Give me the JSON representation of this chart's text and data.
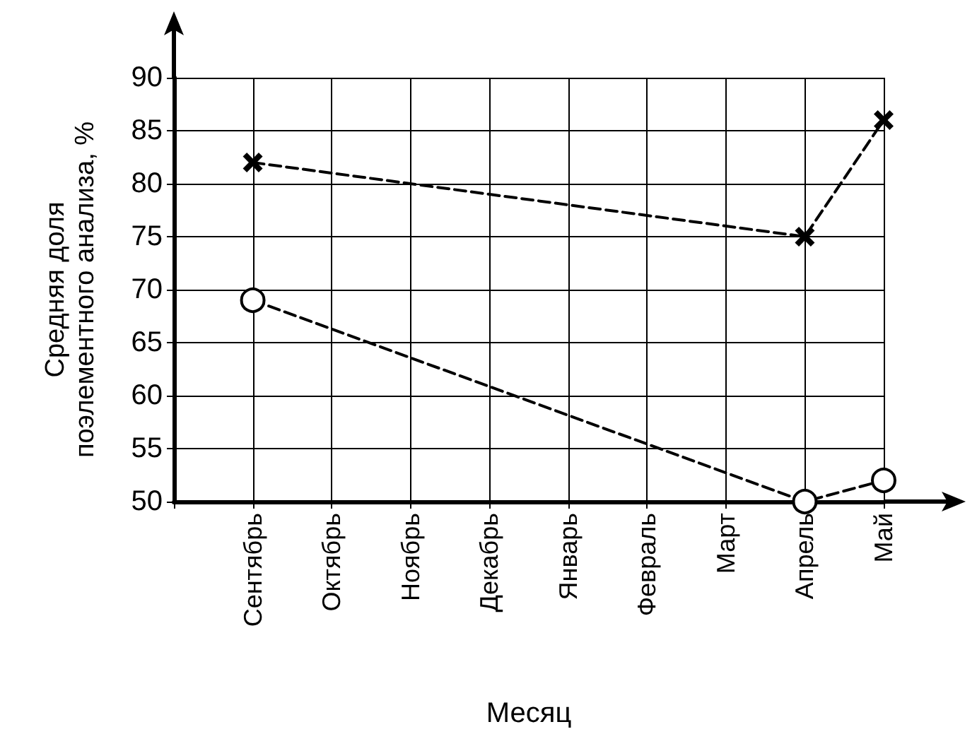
{
  "chart_data": {
    "type": "line",
    "xlabel": "Месяц",
    "ylabel": "Средняя доля\nпоэлементного анализа, %",
    "categories": [
      "Сентябрь",
      "Октябрь",
      "Ноябрь",
      "Декабрь",
      "Январь",
      "Февраль",
      "Март",
      "Апрель",
      "Май"
    ],
    "series": [
      {
        "color": "#000000",
        "marker": "cross",
        "values": [
          82,
          null,
          null,
          null,
          null,
          null,
          null,
          75,
          86
        ]
      },
      {
        "color": "#000000",
        "marker": "circle",
        "values": [
          69,
          null,
          null,
          null,
          null,
          null,
          null,
          50,
          52
        ]
      }
    ],
    "ylim": [
      50,
      90
    ],
    "yticks": [
      50,
      55,
      60,
      65,
      70,
      75,
      80,
      85,
      90
    ],
    "grid": true,
    "line_style": "dashed"
  }
}
